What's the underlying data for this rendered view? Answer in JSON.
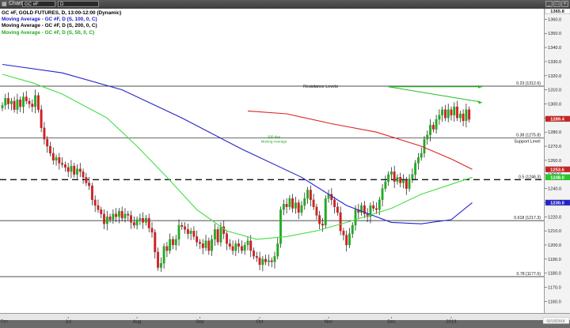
{
  "window": {
    "title": "Chart",
    "symbol_field": "GC #F",
    "interval_field": "D"
  },
  "legend": [
    {
      "label": "GC #F, GOLD FUTURES, D, 13:00-12:00 (Dynamic)",
      "color": "#000000"
    },
    {
      "label": "Moving Average - GC #F, D (S, 100, 0, C)",
      "color": "#1a1acc"
    },
    {
      "label": "Moving Average - GC #F, D (S, 200, 0, C)",
      "color": "#000000"
    },
    {
      "label": "Moving Average - GC #F, D (S, 50, 0, C)",
      "color": "#22aa22"
    }
  ],
  "annotations": {
    "resistance": "Resistance Levels",
    "support": "Support Level",
    "ma200_line1": "200 day",
    "ma200_line2": "Moving Average",
    "fib_023": "0.23 (1312.6)",
    "fib_038": "0.38 (1275.8)",
    "fib_05": "0.5 (1246.3)",
    "fib_0618": "0.618 (1217.3)",
    "fib_078": "0.78 (1177.6)"
  },
  "price_tags": {
    "last": "1289.4",
    "ma200": "1253.6",
    "ma50": "1248.0",
    "ma100": "1230.0",
    "top": "1365.8"
  },
  "footer": {
    "dyn": "Dyn",
    "date_left": "6 Jun 2018",
    "date_right": "02/15/2019"
  },
  "colors": {
    "up": "#22aa22",
    "down": "#cc2222",
    "ma100": "#2222cc",
    "ma200": "#dd2222",
    "ma50": "#44dd44",
    "last_tag": "#cc2222",
    "ma50_tag": "#22cc22",
    "ma100_tag": "#2222cc"
  },
  "chart_data": {
    "type": "candlestick",
    "title": "GC #F, GOLD FUTURES, D, 13:00-12:00 (Dynamic)",
    "ylim": [
      1155,
      1367
    ],
    "y_ticks": [
      1160,
      1170,
      1180,
      1190,
      1200,
      1210,
      1220,
      1230,
      1240,
      1250,
      1260,
      1270,
      1280,
      1290,
      1300,
      1310,
      1320,
      1330,
      1340,
      1350,
      1360
    ],
    "x_labels": [
      "Jul",
      "Aug",
      "Sep",
      "Oct",
      "Nov",
      "Dec",
      "2019"
    ],
    "x_label_sessions": [
      22,
      45,
      66,
      86,
      109,
      130,
      150
    ],
    "sessions": 157,
    "closes": [
      1299,
      1304,
      1300,
      1302,
      1296,
      1303,
      1298,
      1305,
      1302,
      1300,
      1298,
      1306,
      1296,
      1283,
      1275,
      1270,
      1265,
      1260,
      1262,
      1258,
      1257,
      1255,
      1252,
      1256,
      1250,
      1254,
      1252,
      1248,
      1244,
      1242,
      1232,
      1228,
      1225,
      1222,
      1215,
      1220,
      1218,
      1222,
      1220,
      1224,
      1219,
      1222,
      1221,
      1216,
      1214,
      1218,
      1219,
      1216,
      1219,
      1212,
      1209,
      1195,
      1184,
      1187,
      1199,
      1196,
      1204,
      1200,
      1204,
      1214,
      1213,
      1211,
      1208,
      1210,
      1206,
      1202,
      1201,
      1198,
      1203,
      1196,
      1204,
      1211,
      1202,
      1213,
      1208,
      1201,
      1199,
      1196,
      1201,
      1199,
      1196,
      1200,
      1203,
      1196,
      1192,
      1191,
      1186,
      1190,
      1188,
      1189,
      1188,
      1192,
      1201,
      1225,
      1229,
      1227,
      1233,
      1226,
      1230,
      1223,
      1228,
      1233,
      1239,
      1232,
      1227,
      1221,
      1215,
      1214,
      1233,
      1236,
      1232,
      1227,
      1223,
      1210,
      1207,
      1200,
      1208,
      1214,
      1225,
      1223,
      1228,
      1222,
      1220,
      1228,
      1226,
      1225,
      1232,
      1240,
      1245,
      1250,
      1252,
      1245,
      1248,
      1244,
      1246,
      1240,
      1247,
      1250,
      1258,
      1262,
      1265,
      1275,
      1278,
      1285,
      1282,
      1289,
      1292,
      1296,
      1290,
      1296,
      1292,
      1298,
      1290,
      1293,
      1288,
      1296,
      1289
    ],
    "series": [
      {
        "name": "Moving Average - GC #F, D (S, 100, 0, C)",
        "points": [
          [
            0,
            1328
          ],
          [
            20,
            1322
          ],
          [
            40,
            1310
          ],
          [
            60,
            1290
          ],
          [
            80,
            1268
          ],
          [
            100,
            1248
          ],
          [
            115,
            1228
          ],
          [
            130,
            1216
          ],
          [
            140,
            1215
          ],
          [
            150,
            1218
          ],
          [
            157,
            1230
          ]
        ]
      },
      {
        "name": "Moving Average - GC #F, D (S, 200, 0, C)",
        "points": [
          [
            82,
            1295
          ],
          [
            95,
            1293
          ],
          [
            110,
            1286
          ],
          [
            125,
            1280
          ],
          [
            140,
            1270
          ],
          [
            150,
            1261
          ],
          [
            157,
            1253.6
          ]
        ]
      },
      {
        "name": "Moving Average - GC #F, D (S, 50, 0, C)",
        "points": [
          [
            0,
            1321
          ],
          [
            10,
            1315
          ],
          [
            20,
            1307
          ],
          [
            35,
            1290
          ],
          [
            45,
            1270
          ],
          [
            55,
            1248
          ],
          [
            65,
            1225
          ],
          [
            75,
            1210
          ],
          [
            85,
            1204
          ],
          [
            95,
            1206
          ],
          [
            105,
            1210
          ],
          [
            115,
            1216
          ],
          [
            130,
            1226
          ],
          [
            140,
            1236
          ],
          [
            150,
            1243
          ],
          [
            157,
            1248
          ]
        ]
      }
    ],
    "levels": [
      {
        "label": "0.23 (1312.6)",
        "value": 1312.6
      },
      {
        "label": "0.38 (1275.8)",
        "value": 1275.8
      },
      {
        "label": "0.5 (1246.3)",
        "value": 1246.3
      },
      {
        "label": "0.618 (1217.3)",
        "value": 1217.3
      },
      {
        "label": "0.78 (1177.6)",
        "value": 1177.6
      }
    ]
  }
}
